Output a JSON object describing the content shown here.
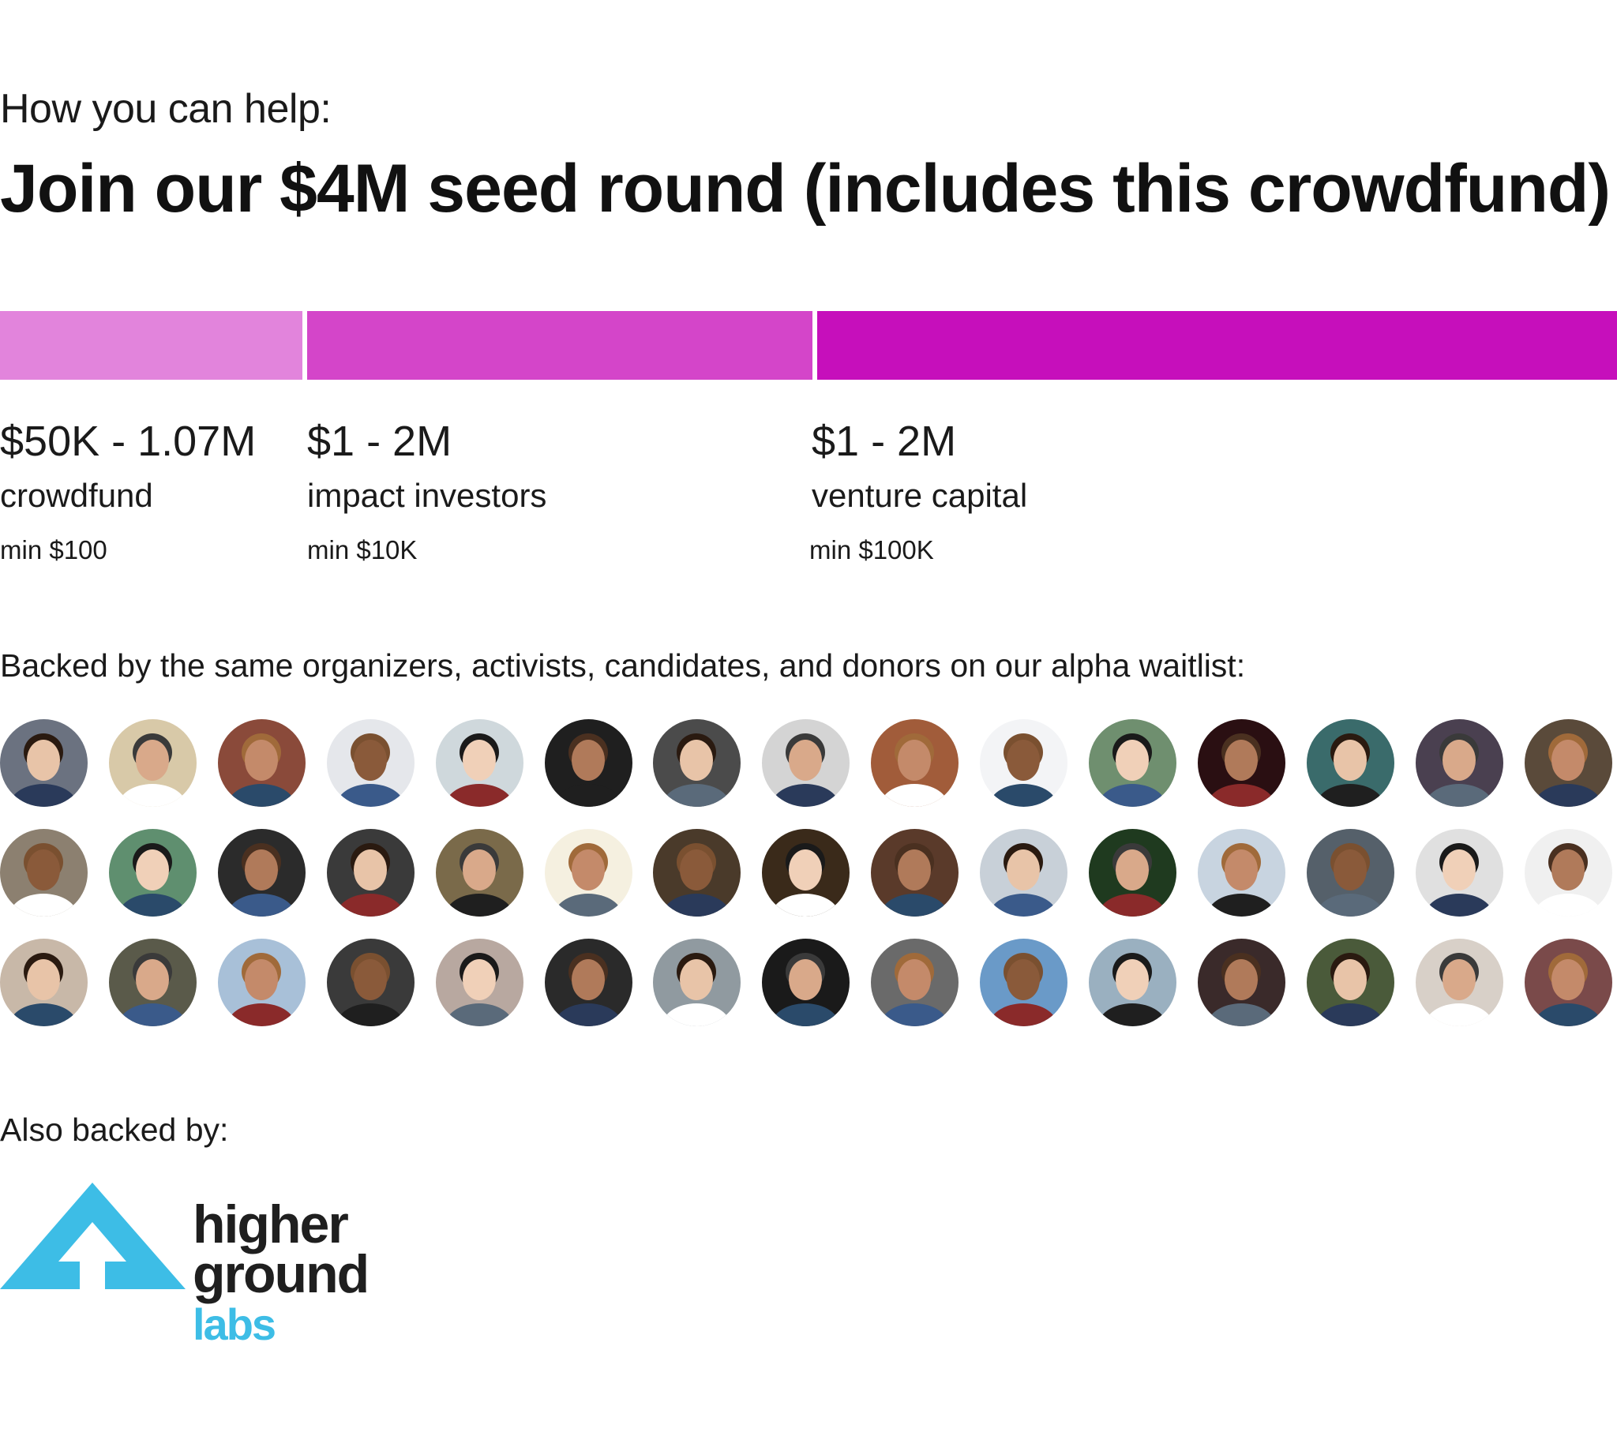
{
  "header": {
    "subtitle": "How you can help:",
    "title": "Join our $4M seed round (includes this crowdfund)"
  },
  "colors": {
    "crowdfund": "#e284dc",
    "impact": "#d445c9",
    "venture": "#c60fbb",
    "logo_blue": "#3dbde6",
    "logo_dark": "#1f1f1f"
  },
  "tiers": [
    {
      "amount": "$50K - 1.07M",
      "label": "crowdfund",
      "min": "min $100"
    },
    {
      "amount": "$1 - 2M",
      "label": "impact investors",
      "min": "min $10K"
    },
    {
      "amount": "$1 - 2M",
      "label": "venture capital",
      "min": "min $100K"
    }
  ],
  "backers": {
    "heading": "Backed by the same organizers, activists, candidates, and donors on our alpha waitlist:"
  },
  "also": {
    "heading": "Also backed by:"
  },
  "logo": {
    "line1": "higher",
    "line2": "ground",
    "line3": "labs"
  }
}
